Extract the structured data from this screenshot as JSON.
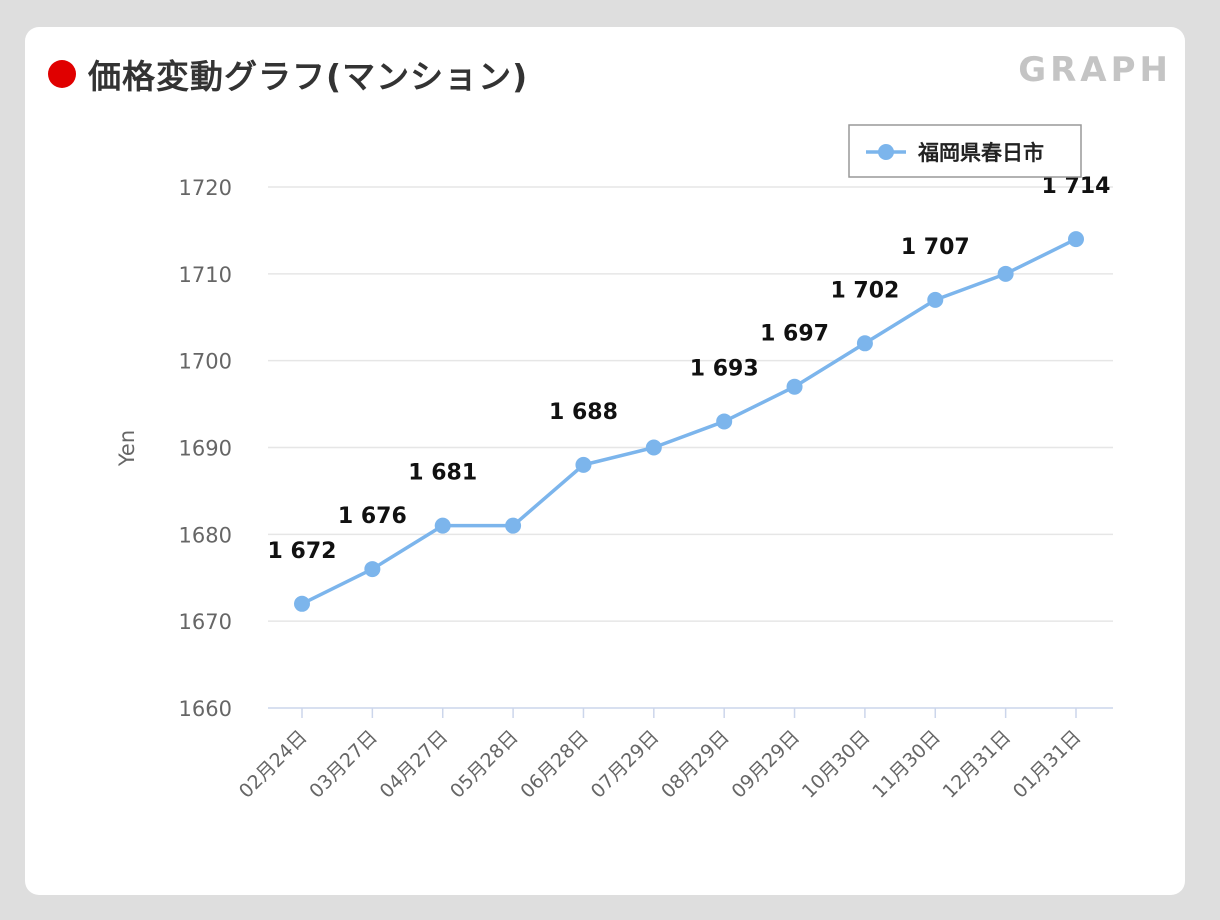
{
  "header": {
    "title": "価格変動グラフ(マンション)",
    "tag": "GRAPH"
  },
  "colors": {
    "accent_dot": "#e00000",
    "series": "#7cb5ec",
    "grid": "#e6e6e6"
  },
  "chart_data": {
    "type": "line",
    "ylabel": "Yen",
    "xlabel": "",
    "ylim": [
      1660,
      1720
    ],
    "yticks": [
      1660,
      1670,
      1680,
      1690,
      1700,
      1710,
      1720
    ],
    "categories": [
      "02月24日",
      "03月27日",
      "04月27日",
      "05月28日",
      "06月28日",
      "07月29日",
      "08月29日",
      "09月29日",
      "10月30日",
      "11月30日",
      "12月31日",
      "01月31日"
    ],
    "series": [
      {
        "name": "福岡県春日市",
        "values": [
          1672,
          1676,
          1681,
          1681,
          1688,
          1690,
          1693,
          1697,
          1702,
          1707,
          1710,
          1714
        ],
        "data_labels": [
          "1 672",
          "1 676",
          "1 681",
          "",
          "1 688",
          "",
          "1 693",
          "1 697",
          "1 702",
          "1 707",
          "",
          "1 714"
        ]
      }
    ],
    "legend_position": "top-right",
    "grid": true
  }
}
